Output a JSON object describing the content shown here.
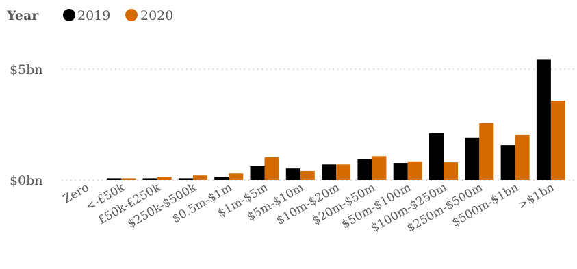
{
  "chart_data": {
    "type": "bar",
    "legend_title": "Year",
    "categories": [
      "Zero",
      "<-£50k",
      "£50k-£250k",
      "$250k-$500k",
      "$0.5m-$1m",
      "$1m-$5m",
      "$5m-$10m",
      "$10m-$20m",
      "$20m-$50m",
      "$50m-$100m",
      "$100m-$250m",
      "$250m-$500m",
      "$500m-$1bn",
      ">$1bn"
    ],
    "series": [
      {
        "name": "2019",
        "color": "#000000",
        "values": [
          0,
          0.08,
          0.08,
          0.08,
          0.15,
          0.62,
          0.52,
          0.7,
          0.93,
          0.77,
          2.1,
          1.92,
          1.57,
          5.45
        ]
      },
      {
        "name": "2020",
        "color": "#d46a00",
        "values": [
          0,
          0.08,
          0.13,
          0.21,
          0.3,
          1.02,
          0.4,
          0.7,
          1.07,
          0.84,
          0.8,
          2.57,
          2.04,
          3.58
        ]
      }
    ],
    "yticks": [
      {
        "value": 0,
        "label": "$0bn"
      },
      {
        "value": 5,
        "label": "$5bn"
      }
    ],
    "ylim": [
      0,
      5.6
    ],
    "grid": true,
    "legend_position": "top-left"
  }
}
